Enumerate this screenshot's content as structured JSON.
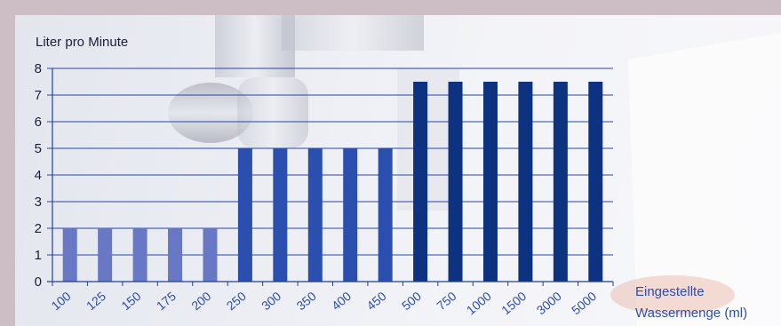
{
  "chart_data": {
    "type": "bar",
    "ylabel": "Liter pro Minute",
    "xlabel_line1": "Eingestellte",
    "xlabel_line2": "Wassermenge (ml)",
    "categories": [
      "100",
      "125",
      "150",
      "175",
      "200",
      "250",
      "300",
      "350",
      "400",
      "450",
      "500",
      "750",
      "1000",
      "1500",
      "3000",
      "5000"
    ],
    "values": [
      2,
      2,
      2,
      2,
      2,
      5,
      5,
      5,
      5,
      5,
      7.5,
      7.5,
      7.5,
      7.5,
      7.5,
      7.5
    ],
    "ylim": [
      0,
      8
    ],
    "yticks": [
      "0",
      "1",
      "2",
      "3",
      "4",
      "5",
      "6",
      "7",
      "8"
    ],
    "grid": true,
    "colors": {
      "low": "#6878c4",
      "mid": "#2a4fae",
      "high": "#0d3280",
      "axis": "#1f3f9a",
      "grid": "#2645a6"
    }
  }
}
